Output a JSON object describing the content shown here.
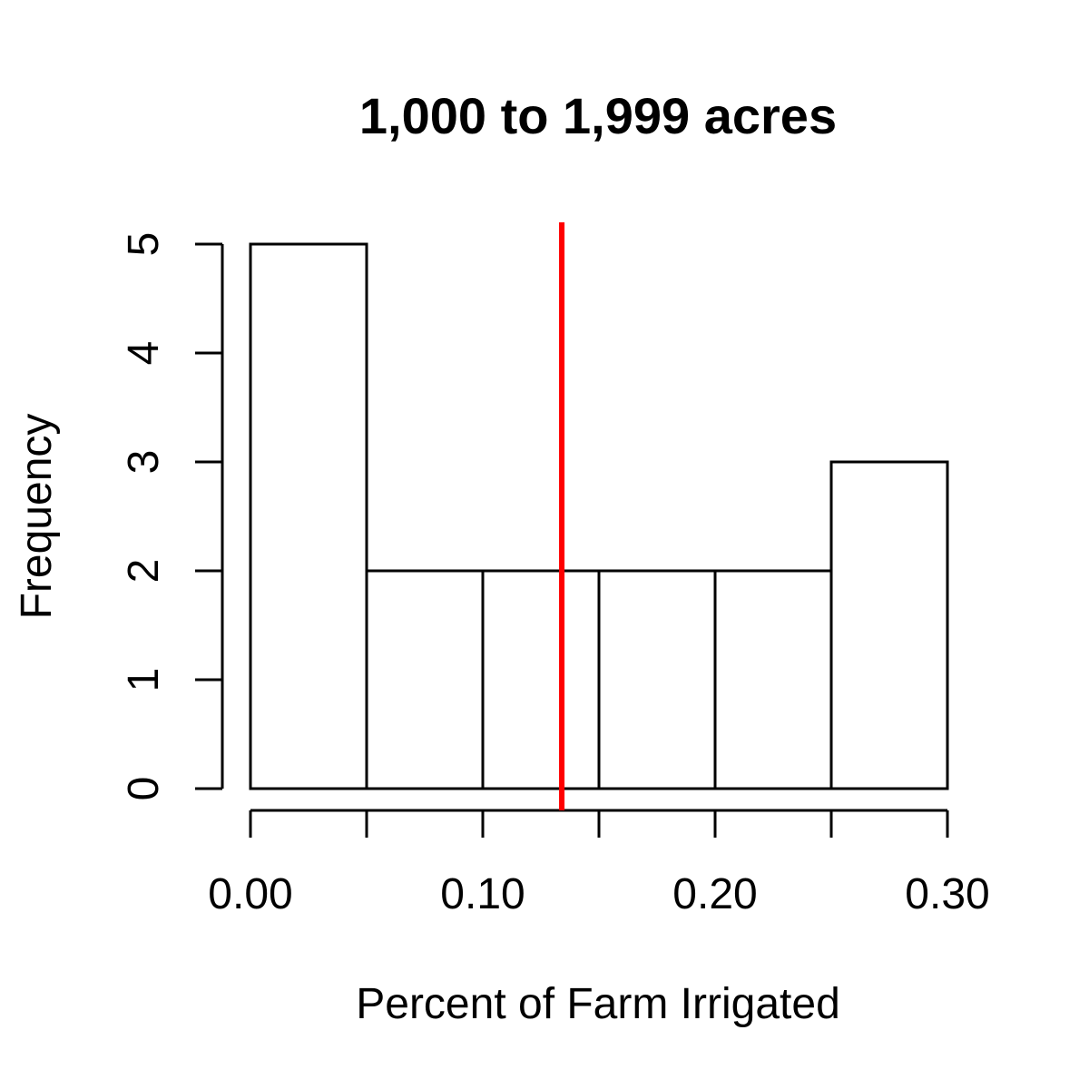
{
  "chart_data": {
    "type": "bar",
    "title": "1,000 to 1,999 acres",
    "xlabel": "Percent of Farm Irrigated",
    "ylabel": "Frequency",
    "bin_edges": [
      0.0,
      0.05,
      0.1,
      0.15,
      0.2,
      0.25,
      0.3
    ],
    "values": [
      5,
      2,
      2,
      2,
      2,
      3
    ],
    "xlim": [
      0.0,
      0.3
    ],
    "ylim": [
      0,
      5
    ],
    "x_ticks": [
      0.0,
      0.05,
      0.1,
      0.15,
      0.2,
      0.25,
      0.3
    ],
    "x_tick_labels": [
      "0.00",
      "",
      "0.10",
      "",
      "0.20",
      "",
      "0.30"
    ],
    "y_ticks": [
      0,
      1,
      2,
      3,
      4,
      5
    ],
    "y_tick_labels": [
      "0",
      "1",
      "2",
      "3",
      "4",
      "5"
    ],
    "reference_line": {
      "x": 0.134,
      "color": "#ff0000"
    },
    "bar_fill": "#ffffff",
    "bar_stroke": "#000000",
    "grid": false,
    "legend": "none"
  }
}
